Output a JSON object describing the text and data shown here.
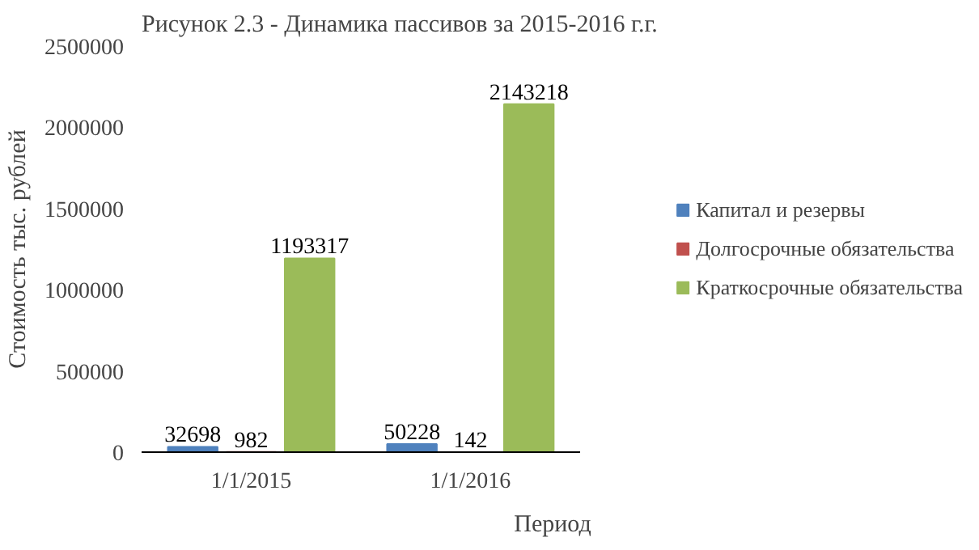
{
  "chart_data": {
    "type": "bar",
    "title": "Рисунок 2.3 - Динамика пассивов за 2015-2016 г.г.",
    "xlabel": "Период",
    "ylabel": "Стоимость тыс. рублей",
    "categories": [
      "1/1/2015",
      "1/1/2016"
    ],
    "series": [
      {
        "name": "Капитал и резервы",
        "color": "#4f81bd",
        "values": [
          32698,
          50228
        ]
      },
      {
        "name": "Долгосрочные обязательства",
        "color": "#c0504d",
        "values": [
          982,
          142
        ]
      },
      {
        "name": "Краткосрочные обязательства",
        "color": "#9bbb59",
        "values": [
          1193317,
          2143218
        ]
      }
    ],
    "ylim": [
      0,
      2500000
    ],
    "yticks": [
      0,
      500000,
      1000000,
      1500000,
      2000000,
      2500000
    ],
    "data_labels": true,
    "grid": false,
    "legend": "right"
  }
}
